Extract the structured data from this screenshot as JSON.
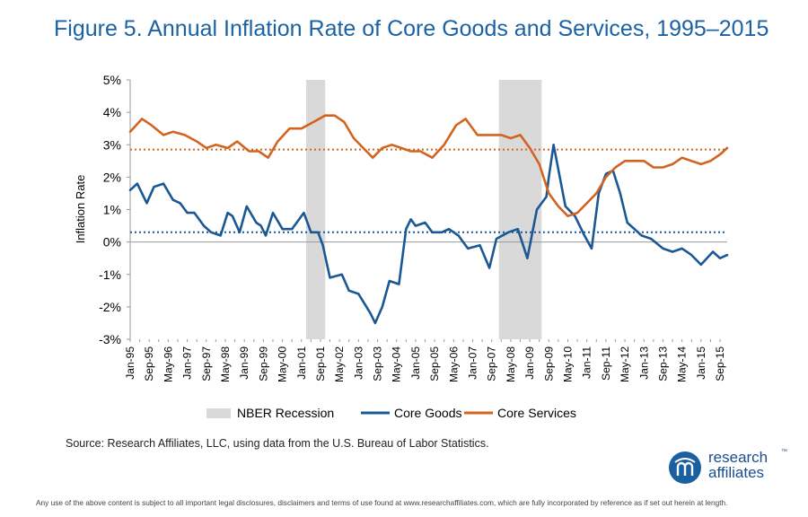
{
  "title": "Figure 5. Annual Inflation Rate of Core Goods and Services, 1995–2015",
  "source": "Source: Research Affiliates, LLC, using data from the U.S. Bureau of Labor Statistics.",
  "disclaimer": "Any use of the above content is subject to all important legal disclosures, disclaimers and terms of use found at www.researchaffiliates.com, which are fully incorporated by reference as if set out herein at length.",
  "logo": {
    "line1": "research",
    "line2": "affiliates",
    "tm": "™"
  },
  "colors": {
    "goods": "#1a5894",
    "services": "#d2641f",
    "recession": "#d9d9d9",
    "title": "#1a62a3"
  },
  "chart_data": {
    "type": "line",
    "ylabel": "Inflation Rate",
    "xlabel": "",
    "ylim": [
      -3,
      5
    ],
    "x_range": [
      1995.0,
      2015.917
    ],
    "y_ticks": [
      "5%",
      "4%",
      "3%",
      "2%",
      "1%",
      "0%",
      "-1%",
      "-2%",
      "-3%"
    ],
    "y_tick_values": [
      5,
      4,
      3,
      2,
      1,
      0,
      -1,
      -2,
      -3
    ],
    "x_tick_labels": [
      "Jan-95",
      "Sep-95",
      "May-96",
      "Jan-97",
      "Sep-97",
      "May-98",
      "Jan-99",
      "Sep-99",
      "May-00",
      "Jan-01",
      "Sep-01",
      "May-02",
      "Jan-03",
      "Sep-03",
      "May-04",
      "Jan-05",
      "Sep-05",
      "May-06",
      "Jan-07",
      "Sep-07",
      "May-08",
      "Jan-09",
      "Sep-09",
      "May-10",
      "Jan-11",
      "Sep-11",
      "May-12",
      "Jan-13",
      "Sep-13",
      "May-14",
      "Jan-15",
      "Sep-15"
    ],
    "recessions": [
      {
        "start": "Mar-01",
        "end": "Nov-01"
      },
      {
        "start": "Dec-07",
        "end": "Jun-09"
      }
    ],
    "reference_lines": [
      {
        "series": "Core Services",
        "value": 2.85,
        "style": "dotted"
      },
      {
        "series": "Core Goods",
        "value": 0.3,
        "style": "dotted"
      }
    ],
    "legend": {
      "position": "bottom",
      "items": [
        "NBER Recession",
        "Core Goods",
        "Core Services"
      ]
    },
    "series": [
      {
        "name": "Core Goods",
        "x": [
          "Jan-95",
          "Apr-95",
          "Aug-95",
          "Nov-95",
          "Mar-96",
          "Jul-96",
          "Oct-96",
          "Jan-97",
          "Apr-97",
          "Aug-97",
          "Nov-97",
          "Mar-98",
          "Jun-98",
          "Aug-98",
          "Nov-98",
          "Feb-99",
          "Jun-99",
          "Aug-99",
          "Oct-99",
          "Jan-00",
          "May-00",
          "Sep-00",
          "Nov-00",
          "Feb-01",
          "May-01",
          "Aug-01",
          "Oct-01",
          "Jan-02",
          "Jun-02",
          "Sep-02",
          "Jan-03",
          "Jun-03",
          "Aug-03",
          "Nov-03",
          "Feb-04",
          "Jun-04",
          "Sep-04",
          "Nov-04",
          "Jan-05",
          "May-05",
          "Aug-05",
          "Dec-05",
          "Mar-06",
          "Jul-06",
          "Nov-06",
          "Apr-07",
          "Aug-07",
          "Nov-07",
          "Apr-08",
          "Aug-08",
          "Dec-08",
          "Apr-09",
          "Aug-09",
          "Sep-09",
          "Nov-09",
          "Apr-10",
          "Aug-10",
          "Dec-10",
          "Mar-11",
          "Jun-11",
          "Sep-11",
          "Dec-11",
          "Mar-12",
          "Jun-12",
          "Sep-12",
          "Dec-12",
          "Apr-13",
          "Sep-13",
          "Jan-14",
          "May-14",
          "Sep-14",
          "Jan-15",
          "Jun-15",
          "Sep-15",
          "Dec-15"
        ],
        "values": [
          1.6,
          1.8,
          1.2,
          1.7,
          1.8,
          1.3,
          1.2,
          0.9,
          0.9,
          0.5,
          0.3,
          0.2,
          0.9,
          0.8,
          0.3,
          1.1,
          0.6,
          0.5,
          0.2,
          0.9,
          0.4,
          0.4,
          0.6,
          0.9,
          0.3,
          0.3,
          -0.1,
          -1.1,
          -1.0,
          -1.5,
          -1.6,
          -2.2,
          -2.5,
          -2.0,
          -1.2,
          -1.3,
          0.4,
          0.7,
          0.5,
          0.6,
          0.3,
          0.3,
          0.4,
          0.2,
          -0.2,
          -0.1,
          -0.8,
          0.1,
          0.3,
          0.4,
          -0.5,
          1.0,
          1.4,
          2.0,
          3.0,
          1.1,
          0.8,
          0.2,
          -0.2,
          1.5,
          2.1,
          2.2,
          1.5,
          0.6,
          0.4,
          0.2,
          0.1,
          -0.2,
          -0.3,
          -0.2,
          -0.4,
          -0.7,
          -0.3,
          -0.5,
          -0.4
        ]
      },
      {
        "name": "Core Services",
        "x": [
          "Jan-95",
          "Jun-95",
          "Oct-95",
          "Mar-96",
          "Jul-96",
          "Dec-96",
          "May-97",
          "Sep-97",
          "Jan-98",
          "Jun-98",
          "Oct-98",
          "Mar-99",
          "Jul-99",
          "Nov-99",
          "Mar-00",
          "Aug-00",
          "Jan-01",
          "Jun-01",
          "Nov-01",
          "Mar-02",
          "Jul-02",
          "Nov-02",
          "Mar-03",
          "Jul-03",
          "Nov-03",
          "Mar-04",
          "Jul-04",
          "Nov-04",
          "Mar-05",
          "Aug-05",
          "Jan-06",
          "Jun-06",
          "Oct-06",
          "Mar-07",
          "Aug-07",
          "Jan-08",
          "May-08",
          "Sep-08",
          "Jan-09",
          "May-09",
          "Sep-09",
          "Jan-10",
          "May-10",
          "Sep-10",
          "Jan-11",
          "May-11",
          "Sep-11",
          "Jan-12",
          "May-12",
          "Sep-12",
          "Jan-13",
          "May-13",
          "Sep-13",
          "Jan-14",
          "May-14",
          "Sep-14",
          "Jan-15",
          "May-15",
          "Sep-15",
          "Dec-15"
        ],
        "values": [
          3.4,
          3.8,
          3.6,
          3.3,
          3.4,
          3.3,
          3.1,
          2.9,
          3.0,
          2.9,
          3.1,
          2.8,
          2.8,
          2.6,
          3.1,
          3.5,
          3.5,
          3.7,
          3.9,
          3.9,
          3.7,
          3.2,
          2.9,
          2.6,
          2.9,
          3.0,
          2.9,
          2.8,
          2.8,
          2.6,
          3.0,
          3.6,
          3.8,
          3.3,
          3.3,
          3.3,
          3.2,
          3.3,
          2.9,
          2.4,
          1.5,
          1.1,
          0.8,
          0.9,
          1.2,
          1.5,
          2.0,
          2.3,
          2.5,
          2.5,
          2.5,
          2.3,
          2.3,
          2.4,
          2.6,
          2.5,
          2.4,
          2.5,
          2.7,
          2.9
        ]
      }
    ]
  }
}
